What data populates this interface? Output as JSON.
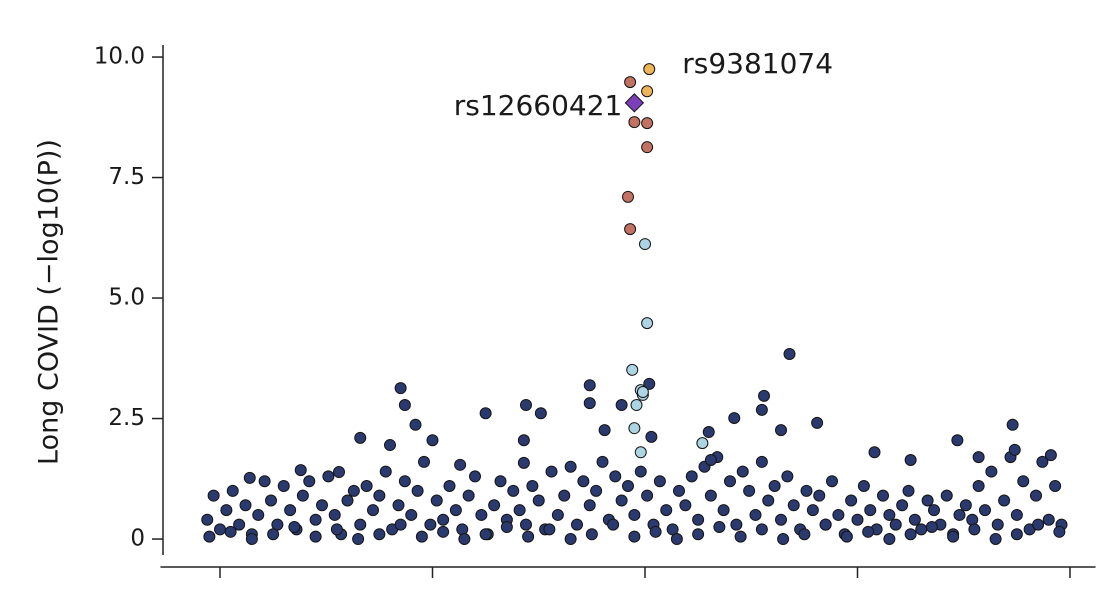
{
  "chart_data": {
    "type": "scatter",
    "ylabel": "Long COVID (−log10(P))",
    "xlim": [
      -0.28,
      4.12
    ],
    "xticks": [
      0,
      1,
      2,
      3,
      4
    ],
    "ylim": [
      -0.58,
      10.25
    ],
    "yticks": [
      0,
      2.5,
      {
        "value": 5,
        "label": "5.0"
      },
      7.5,
      {
        "value": 10,
        "label": "10.0"
      }
    ],
    "grid": false,
    "series": [
      {
        "color": "#2b3a6e",
        "marker": "circle",
        "x": [
          -0.06,
          -0.03,
          0.0,
          0.03,
          0.06,
          0.09,
          0.12,
          0.15,
          0.18,
          0.21,
          0.24,
          0.27,
          0.3,
          0.33,
          0.36,
          0.39,
          0.42,
          0.45,
          0.48,
          0.51,
          0.54,
          0.57,
          0.6,
          0.63,
          0.66,
          0.69,
          0.72,
          0.75,
          0.78,
          0.81,
          0.84,
          0.87,
          0.9,
          0.93,
          0.96,
          0.99,
          1.02,
          1.05,
          1.08,
          1.11,
          1.14,
          1.17,
          1.2,
          1.23,
          1.26,
          1.29,
          1.32,
          1.35,
          1.38,
          1.41,
          1.44,
          1.47,
          1.5,
          1.53,
          1.56,
          1.59,
          1.62,
          1.65,
          1.68,
          1.71,
          1.74,
          1.77,
          1.8,
          1.83,
          1.86,
          1.89,
          1.92,
          1.95,
          1.98,
          2.01,
          2.04,
          2.07,
          2.1,
          2.13,
          2.16,
          2.19,
          2.22,
          2.25,
          2.28,
          2.31,
          2.34,
          2.37,
          2.4,
          2.43,
          2.46,
          2.49,
          2.52,
          2.55,
          2.58,
          2.61,
          2.64,
          2.67,
          2.7,
          2.73,
          2.76,
          2.79,
          2.82,
          2.85,
          2.88,
          2.91,
          2.94,
          2.97,
          3.0,
          3.03,
          3.06,
          3.09,
          3.12,
          3.15,
          3.18,
          3.21,
          3.24,
          3.27,
          3.3,
          3.33,
          3.36,
          3.39,
          3.42,
          3.45,
          3.48,
          3.51,
          3.54,
          3.57,
          3.6,
          3.63,
          3.66,
          3.69,
          3.72,
          3.75,
          3.78,
          3.81,
          3.84,
          3.87,
          3.9,
          3.93,
          3.96,
          -0.05,
          0.05,
          0.15,
          0.25,
          0.35,
          0.45,
          0.55,
          0.65,
          0.75,
          0.85,
          0.95,
          1.05,
          1.15,
          1.25,
          1.35,
          1.45,
          1.55,
          1.65,
          1.75,
          1.85,
          1.95,
          2.05,
          2.15,
          2.25,
          2.35,
          2.45,
          2.55,
          2.65,
          2.75,
          2.85,
          2.95,
          3.05,
          3.15,
          3.25,
          3.35,
          3.45,
          3.55,
          3.65,
          3.75,
          3.85,
          3.95,
          0.85,
          0.87,
          0.66,
          0.8,
          0.92,
          1.0,
          1.25,
          1.44,
          1.51,
          1.43,
          1.74,
          1.74,
          1.81,
          1.89,
          2.02,
          2.03,
          2.3,
          2.42,
          2.56,
          2.55,
          2.68,
          2.64,
          2.81,
          3.08,
          3.25,
          3.47,
          3.73,
          3.74,
          3.91,
          3.57,
          2.31,
          1.13,
          1.43,
          0.38,
          0.56,
          0.14
        ],
        "values": [
          0.4,
          0.9,
          0.2,
          0.6,
          1.0,
          0.3,
          0.7,
          0.1,
          0.5,
          1.2,
          0.8,
          0.3,
          1.1,
          0.6,
          0.2,
          0.9,
          1.2,
          0.4,
          0.7,
          1.3,
          0.5,
          0.1,
          0.8,
          1.0,
          0.3,
          1.1,
          0.6,
          0.9,
          1.4,
          0.2,
          0.7,
          1.2,
          0.5,
          1.0,
          1.6,
          0.3,
          0.8,
          0.4,
          1.1,
          0.6,
          0.2,
          0.9,
          1.3,
          0.5,
          0.1,
          0.7,
          1.2,
          0.4,
          1.0,
          0.6,
          0.3,
          1.1,
          0.8,
          0.2,
          1.4,
          0.5,
          0.9,
          1.5,
          0.3,
          1.2,
          0.7,
          1.0,
          1.6,
          0.4,
          1.3,
          0.8,
          1.1,
          0.5,
          1.4,
          0.9,
          0.3,
          1.2,
          0.6,
          0.2,
          1.0,
          0.7,
          1.3,
          0.4,
          1.5,
          0.9,
          1.7,
          0.6,
          1.2,
          0.3,
          1.4,
          1.0,
          0.5,
          1.6,
          0.8,
          1.1,
          0.4,
          1.3,
          0.7,
          0.2,
          1.0,
          0.6,
          0.9,
          0.3,
          1.2,
          0.5,
          0.1,
          0.8,
          0.4,
          1.1,
          0.6,
          0.2,
          0.9,
          0.5,
          0.3,
          0.7,
          1.0,
          0.4,
          0.2,
          0.8,
          0.6,
          0.3,
          0.9,
          0.1,
          0.5,
          0.7,
          0.4,
          1.1,
          0.6,
          1.4,
          0.3,
          0.8,
          1.7,
          0.5,
          1.2,
          0.2,
          0.9,
          1.6,
          0.4,
          1.1,
          0.3,
          0.05,
          0.15,
          0.0,
          0.1,
          0.25,
          0.05,
          0.2,
          0.0,
          0.1,
          0.3,
          0.05,
          0.15,
          0.0,
          0.1,
          0.25,
          0.05,
          0.2,
          0.0,
          0.1,
          0.3,
          0.05,
          0.15,
          0.0,
          0.1,
          0.25,
          0.05,
          0.2,
          0.0,
          0.1,
          0.3,
          0.05,
          0.15,
          0.0,
          0.1,
          0.25,
          0.05,
          0.2,
          0.0,
          0.1,
          0.3,
          0.15,
          3.13,
          2.78,
          2.1,
          1.95,
          2.37,
          2.05,
          2.61,
          2.78,
          2.61,
          2.05,
          3.19,
          2.82,
          2.26,
          2.78,
          3.22,
          2.12,
          2.22,
          2.51,
          2.97,
          2.68,
          3.84,
          2.26,
          2.41,
          1.8,
          1.64,
          2.05,
          2.37,
          1.85,
          1.74,
          1.7,
          1.64,
          1.54,
          1.58,
          1.43,
          1.39,
          1.27
        ]
      },
      {
        "color": "#acd4e2",
        "marker": "circle",
        "x": [
          2.0,
          2.01,
          1.94,
          1.98,
          1.99,
          1.96,
          1.99,
          1.95,
          1.98,
          2.27
        ],
        "values": [
          6.12,
          4.48,
          3.51,
          3.09,
          2.99,
          2.78,
          3.05,
          2.3,
          1.8,
          1.99
        ]
      },
      {
        "color": "#c27262",
        "marker": "circle",
        "x": [
          1.93,
          1.95,
          2.01,
          2.01,
          1.92,
          1.93
        ],
        "values": [
          9.48,
          8.65,
          8.63,
          8.13,
          7.1,
          6.43
        ]
      },
      {
        "color": "#f0b458",
        "marker": "circle",
        "x": [
          2.02,
          2.01
        ],
        "values": [
          9.75,
          9.29
        ],
        "point_labels": [
          "rs9381074",
          null
        ],
        "point_label_side": "right"
      },
      {
        "color": "#7d3fb8",
        "marker": "diamond",
        "x": [
          1.95
        ],
        "values": [
          9.05
        ],
        "point_labels": [
          "rs12660421"
        ],
        "point_label_side": "left"
      }
    ]
  }
}
